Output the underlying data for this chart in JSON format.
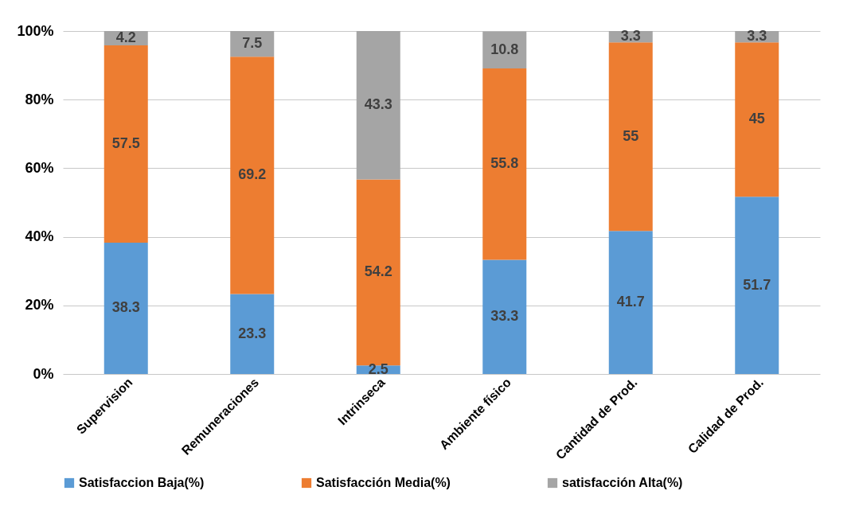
{
  "chart_data": {
    "type": "bar",
    "stacked": true,
    "categories": [
      "Supervision",
      "Remuneraciones",
      "Intrinseca",
      "Ambiente físico",
      "Cantidad de Prod.",
      "Calidad de Prod."
    ],
    "series": [
      {
        "name": "Satisfaccion Baja(%)",
        "color": "#5b9bd5",
        "values": [
          38.3,
          23.3,
          2.5,
          33.3,
          41.7,
          51.7
        ]
      },
      {
        "name": "Satisfacción Media(%)",
        "color": "#ed7d31",
        "values": [
          57.5,
          69.2,
          54.2,
          55.8,
          55,
          45
        ]
      },
      {
        "name": "satisfacción Alta(%)",
        "color": "#a5a5a5",
        "values": [
          4.2,
          7.5,
          43.3,
          10.8,
          3.3,
          3.3
        ]
      }
    ],
    "ylim": [
      0,
      100
    ],
    "yticks": [
      {
        "value": 0,
        "label": "0%"
      },
      {
        "value": 20,
        "label": "20%"
      },
      {
        "value": 40,
        "label": "40%"
      },
      {
        "value": 60,
        "label": "60%"
      },
      {
        "value": 80,
        "label": "80%"
      },
      {
        "value": 100,
        "label": "100%"
      }
    ],
    "grid": "y",
    "legend": "bottom",
    "data_labels": true
  }
}
